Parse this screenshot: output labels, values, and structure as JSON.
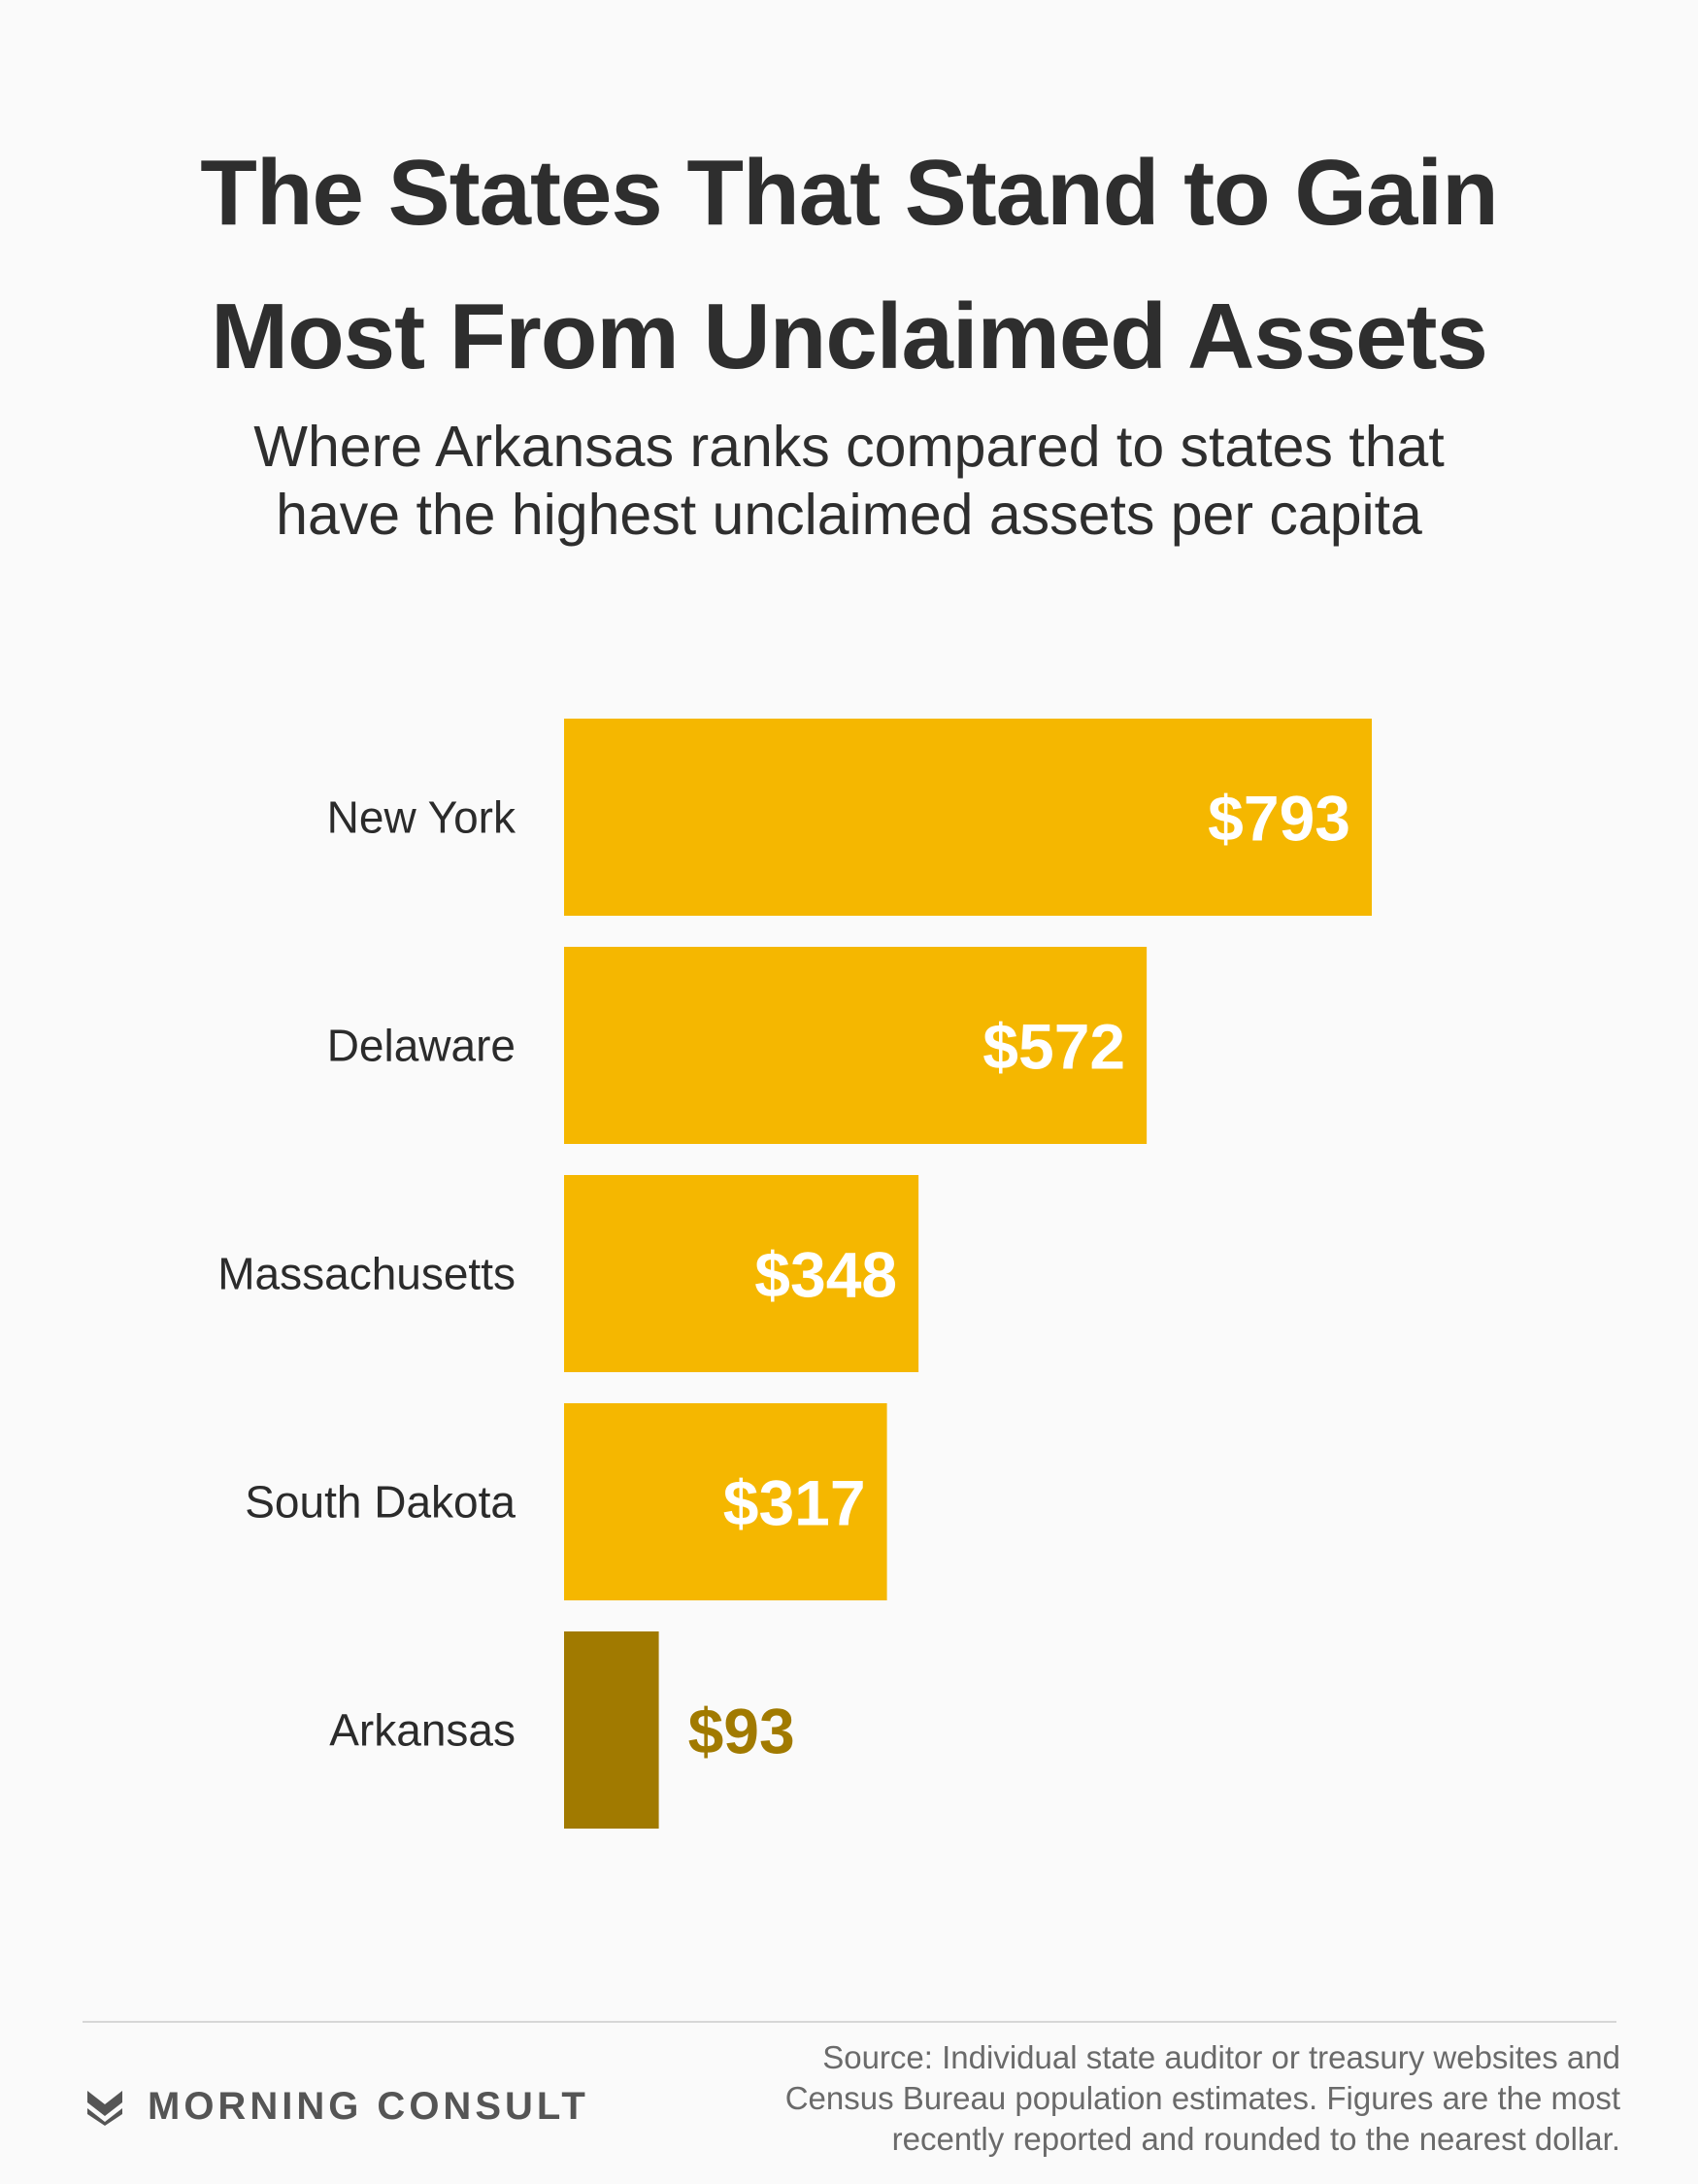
{
  "chart_data": {
    "type": "bar",
    "orientation": "horizontal",
    "title": [
      "The States That Stand to Gain",
      "Most From Unclaimed Assets"
    ],
    "subtitle": [
      "Where Arkansas ranks compared to states that",
      "have the highest unclaimed assets per capita"
    ],
    "categories": [
      "New York",
      "Delaware",
      "Massachusetts",
      "South Dakota",
      "Arkansas"
    ],
    "values": [
      793,
      572,
      348,
      317,
      93
    ],
    "value_labels": [
      "$793",
      "$572",
      "$348",
      "$317",
      "$93"
    ],
    "highlight": "Arkansas",
    "colors": {
      "bar": "#F5B700",
      "highlight": "#A17A00",
      "label_inside": "#FFFFFF",
      "label_highlight": "#A17A00"
    },
    "xlim": [
      0,
      793
    ],
    "grid": false,
    "legend": "none"
  },
  "footer": {
    "brand": "MORNING CONSULT",
    "brand_icon": "morning-consult-chevron-icon",
    "source_lines": [
      "Source: Individual state auditor or treasury websites and",
      "Census Bureau population estimates. Figures are the most",
      "recently reported and rounded to the nearest dollar."
    ]
  }
}
